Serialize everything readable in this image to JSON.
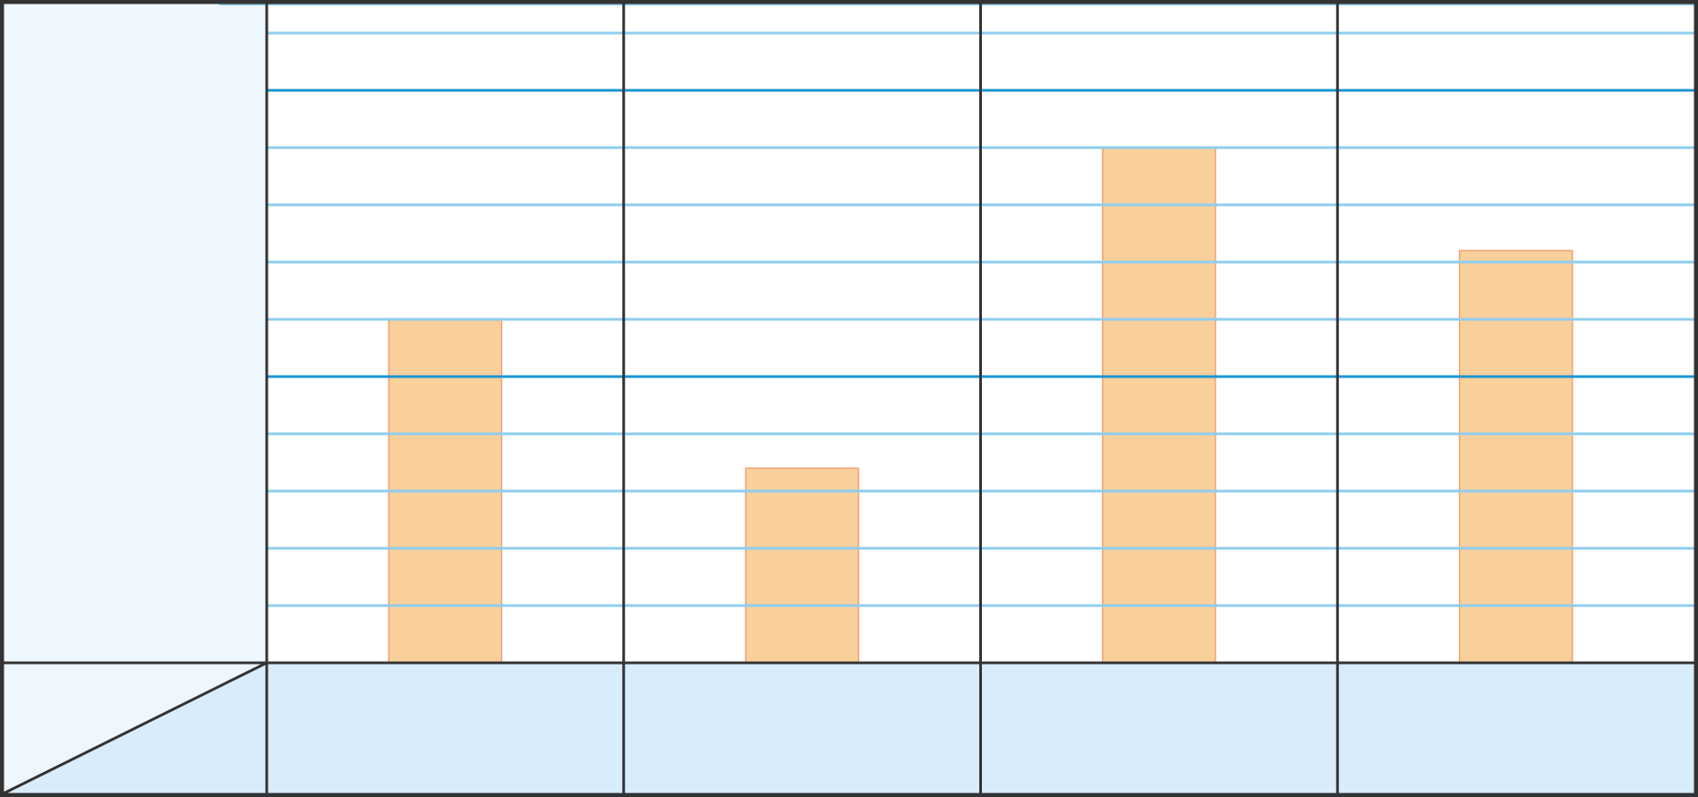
{
  "chart_data": {
    "type": "bar",
    "categories": [
      "",
      "",
      "",
      ""
    ],
    "values": [
      6,
      3.4,
      9,
      7.2
    ],
    "ylim": [
      0,
      11
    ],
    "grid": true,
    "major_gridlines": [
      5,
      10
    ],
    "title": "",
    "xlabel": "",
    "ylabel": ""
  },
  "colors": {
    "bar_fill": "#F9D09C",
    "bar_stroke": "#F0A070",
    "minor_grid": "#8ECDED",
    "major_grid": "#1A96D4",
    "border": "#333333",
    "left_panel": "#EEF6FE",
    "bottom_panel": "#D9ECFB",
    "plot_bg": "#FFFFFF"
  }
}
